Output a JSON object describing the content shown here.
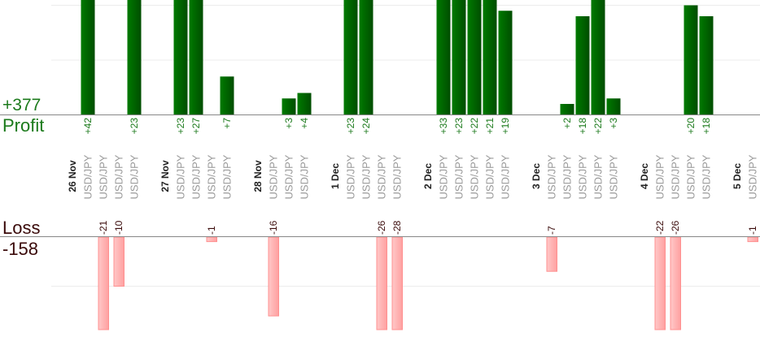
{
  "summary": {
    "profit_total": "+377",
    "profit_label": "Profit",
    "loss_label": "Loss",
    "loss_total": "-158"
  },
  "colors": {
    "profit": "#006400",
    "profit_text": "#1b7a1b",
    "loss_fill": "#ffb3b3",
    "loss_stroke": "#ff9090",
    "loss_text": "#3a0a0a",
    "date_text": "#222222",
    "symbol_text": "#999999",
    "grid": "#ececec",
    "axis": "#888888"
  },
  "chart_data": {
    "type": "bar",
    "grid": true,
    "slots": [
      {
        "type": "date",
        "label": "26 Nov"
      },
      {
        "type": "trade",
        "label": "USD/JPY",
        "value": 42,
        "value_label": "+42"
      },
      {
        "type": "trade",
        "label": "USD/JPY",
        "value": -21,
        "value_label": "-21"
      },
      {
        "type": "trade",
        "label": "USD/JPY",
        "value": -10,
        "value_label": "-10"
      },
      {
        "type": "trade",
        "label": "USD/JPY",
        "value": 23,
        "value_label": "+23"
      },
      {
        "type": "gap"
      },
      {
        "type": "date",
        "label": "27 Nov"
      },
      {
        "type": "trade",
        "label": "USD/JPY",
        "value": 23,
        "value_label": "+23"
      },
      {
        "type": "trade",
        "label": "USD/JPY",
        "value": 27,
        "value_label": "+27"
      },
      {
        "type": "trade",
        "label": "USD/JPY",
        "value": -1,
        "value_label": "-1"
      },
      {
        "type": "trade",
        "label": "USD/JPY",
        "value": 7,
        "value_label": "+7"
      },
      {
        "type": "gap"
      },
      {
        "type": "date",
        "label": "28 Nov"
      },
      {
        "type": "trade",
        "label": "USD/JPY",
        "value": -16,
        "value_label": "-16"
      },
      {
        "type": "trade",
        "label": "USD/JPY",
        "value": 3,
        "value_label": "+3"
      },
      {
        "type": "trade",
        "label": "USD/JPY",
        "value": 4,
        "value_label": "+4"
      },
      {
        "type": "gap"
      },
      {
        "type": "date",
        "label": "1 Dec"
      },
      {
        "type": "trade",
        "label": "USD/JPY",
        "value": 23,
        "value_label": "+23"
      },
      {
        "type": "trade",
        "label": "USD/JPY",
        "value": 24,
        "value_label": "+24"
      },
      {
        "type": "trade",
        "label": "USD/JPY",
        "value": -26,
        "value_label": "-26"
      },
      {
        "type": "trade",
        "label": "USD/JPY",
        "value": -28,
        "value_label": "-28"
      },
      {
        "type": "gap"
      },
      {
        "type": "date",
        "label": "2 Dec"
      },
      {
        "type": "trade",
        "label": "USD/JPY",
        "value": 33,
        "value_label": "+33"
      },
      {
        "type": "trade",
        "label": "USD/JPY",
        "value": 23,
        "value_label": "+23"
      },
      {
        "type": "trade",
        "label": "USD/JPY",
        "value": 22,
        "value_label": "+22"
      },
      {
        "type": "trade",
        "label": "USD/JPY",
        "value": 21,
        "value_label": "+21"
      },
      {
        "type": "trade",
        "label": "USD/JPY",
        "value": 19,
        "value_label": "+19"
      },
      {
        "type": "gap"
      },
      {
        "type": "date",
        "label": "3 Dec"
      },
      {
        "type": "trade",
        "label": "USD/JPY",
        "value": -7,
        "value_label": "-7"
      },
      {
        "type": "trade",
        "label": "USD/JPY",
        "value": 2,
        "value_label": "+2"
      },
      {
        "type": "trade",
        "label": "USD/JPY",
        "value": 18,
        "value_label": "+18"
      },
      {
        "type": "trade",
        "label": "USD/JPY",
        "value": 22,
        "value_label": "+22"
      },
      {
        "type": "trade",
        "label": "USD/JPY",
        "value": 3,
        "value_label": "+3"
      },
      {
        "type": "gap"
      },
      {
        "type": "date",
        "label": "4 Dec"
      },
      {
        "type": "trade",
        "label": "USD/JPY",
        "value": -22,
        "value_label": "-22"
      },
      {
        "type": "trade",
        "label": "USD/JPY",
        "value": -26,
        "value_label": "-26"
      },
      {
        "type": "trade",
        "label": "USD/JPY",
        "value": 20,
        "value_label": "+20"
      },
      {
        "type": "trade",
        "label": "USD/JPY",
        "value": 18,
        "value_label": "+18"
      },
      {
        "type": "gap"
      },
      {
        "type": "date",
        "label": "5 Dec"
      },
      {
        "type": "trade",
        "label": "USD/JPY",
        "value": -1,
        "value_label": "-1"
      }
    ]
  }
}
